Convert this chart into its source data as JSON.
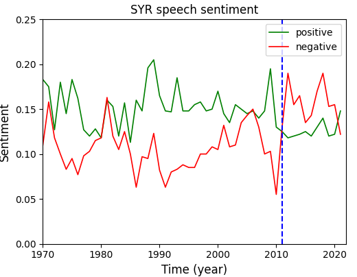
{
  "title": "SYR speech sentiment",
  "xlabel": "Time (year)",
  "ylabel": "Sentiment",
  "vline_x": 2011,
  "vline_color": "blue",
  "vline_style": "--",
  "ylim": [
    0.0,
    0.25
  ],
  "xlim": [
    1970,
    2022
  ],
  "xticks": [
    1970,
    1980,
    1990,
    2000,
    2010,
    2020
  ],
  "yticks": [
    0.0,
    0.05,
    0.1,
    0.15,
    0.2,
    0.25
  ],
  "positive_color": "green",
  "negative_color": "red",
  "positive_label": "positive",
  "negative_label": "negative",
  "years": [
    1970,
    1971,
    1972,
    1973,
    1974,
    1975,
    1976,
    1977,
    1978,
    1979,
    1980,
    1981,
    1982,
    1983,
    1984,
    1985,
    1986,
    1987,
    1988,
    1989,
    1990,
    1991,
    1992,
    1993,
    1994,
    1995,
    1996,
    1997,
    1998,
    1999,
    2000,
    2001,
    2002,
    2003,
    2004,
    2005,
    2006,
    2007,
    2008,
    2009,
    2010,
    2011,
    2012,
    2013,
    2014,
    2015,
    2016,
    2017,
    2018,
    2019,
    2020,
    2021
  ],
  "positive": [
    0.183,
    0.175,
    0.127,
    0.18,
    0.145,
    0.183,
    0.162,
    0.127,
    0.12,
    0.128,
    0.118,
    0.16,
    0.153,
    0.12,
    0.157,
    0.113,
    0.16,
    0.148,
    0.196,
    0.205,
    0.165,
    0.148,
    0.147,
    0.185,
    0.148,
    0.148,
    0.155,
    0.158,
    0.148,
    0.15,
    0.17,
    0.145,
    0.135,
    0.155,
    0.15,
    0.145,
    0.148,
    0.14,
    0.148,
    0.195,
    0.13,
    0.125,
    0.118,
    0.12,
    0.122,
    0.125,
    0.12,
    0.13,
    0.14,
    0.12,
    0.122,
    0.148
  ],
  "negative": [
    0.11,
    0.158,
    0.118,
    0.1,
    0.083,
    0.095,
    0.077,
    0.098,
    0.103,
    0.115,
    0.118,
    0.163,
    0.12,
    0.105,
    0.125,
    0.1,
    0.063,
    0.097,
    0.095,
    0.123,
    0.082,
    0.063,
    0.08,
    0.083,
    0.088,
    0.085,
    0.085,
    0.1,
    0.1,
    0.108,
    0.105,
    0.132,
    0.108,
    0.11,
    0.135,
    0.143,
    0.15,
    0.13,
    0.1,
    0.103,
    0.055,
    0.13,
    0.19,
    0.155,
    0.165,
    0.135,
    0.143,
    0.17,
    0.19,
    0.153,
    0.155,
    0.122
  ]
}
